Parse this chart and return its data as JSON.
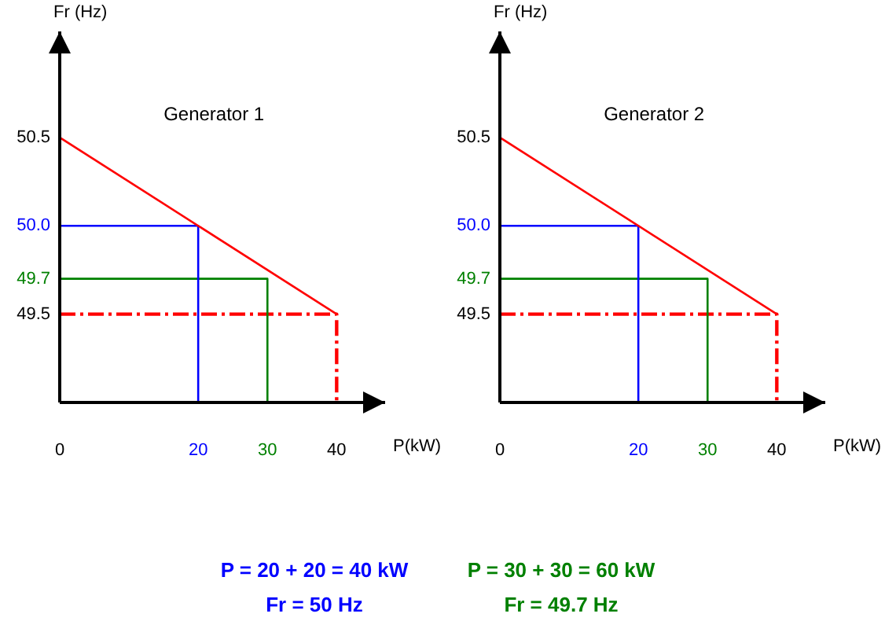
{
  "chart_data": [
    {
      "type": "line",
      "title": "Generator 1",
      "xlabel": "P(kW)",
      "ylabel": "Fr (Hz)",
      "xlim": [
        0,
        47
      ],
      "ylim": [
        49,
        51.1
      ],
      "xticks": [
        0,
        20,
        30,
        40
      ],
      "yticks": [
        {
          "value": 50.5,
          "label": "50.5"
        },
        {
          "value": 50,
          "label": "50.0"
        },
        {
          "value": 49.7,
          "label": "49.7"
        },
        {
          "value": 49.5,
          "label": "49.5"
        }
      ],
      "grid": false,
      "legend": false,
      "marker": "none",
      "series": [
        {
          "color": "#ff0000",
          "x": [
            0,
            40
          ],
          "values": [
            50.5,
            49.5
          ]
        },
        {
          "color": "#0000ff",
          "x": [
            0,
            20,
            20
          ],
          "values": [
            50,
            50,
            49
          ]
        },
        {
          "color": "#008000",
          "x": [
            0,
            30,
            30
          ],
          "values": [
            49.7,
            49.7,
            49
          ]
        },
        {
          "color": "#ff0000",
          "x": [
            0,
            40,
            40
          ],
          "values": [
            49.5,
            49.5,
            49
          ],
          "line_style": "dashed"
        }
      ]
    },
    {
      "type": "line",
      "title": "Generator 2",
      "xlabel": "P(kW)",
      "ylabel": "Fr (Hz)",
      "xlim": [
        0,
        47
      ],
      "ylim": [
        49,
        51.1
      ],
      "xticks": [
        0,
        20,
        30,
        40
      ],
      "yticks": [
        {
          "value": 50.5,
          "label": "50.5"
        },
        {
          "value": 50,
          "label": "50.0"
        },
        {
          "value": 49.7,
          "label": "49.7"
        },
        {
          "value": 49.5,
          "label": "49.5"
        }
      ],
      "grid": false,
      "legend": false,
      "marker": "none",
      "series": [
        {
          "color": "#ff0000",
          "x": [
            0,
            40
          ],
          "values": [
            50.5,
            49.5
          ]
        },
        {
          "color": "#0000ff",
          "x": [
            0,
            20,
            20
          ],
          "values": [
            50,
            50,
            49
          ]
        },
        {
          "color": "#008000",
          "x": [
            0,
            30,
            30
          ],
          "values": [
            49.7,
            49.7,
            49
          ]
        },
        {
          "color": "#ff0000",
          "x": [
            0,
            40,
            40
          ],
          "values": [
            49.5,
            49.5,
            49
          ],
          "line_style": "dashed"
        }
      ]
    },
    {
      "type": "other",
      "annotations": [
        "P = 20 + 20 = 40 kW",
        "Fr = 50 Hz",
        "P = 30 + 30 = 60 kW",
        "Fr = 49.7 Hz"
      ],
      "colors": [
        "#0000ff",
        "#0000ff",
        "#008000",
        "#008000"
      ]
    }
  ]
}
